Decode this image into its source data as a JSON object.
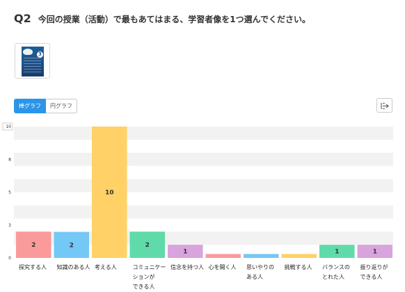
{
  "question": {
    "number": "Q2",
    "text": "今回の授業（活動）で最もあてはまる、学習者像を1つ選んでください。"
  },
  "thumbnail": {
    "badge": "3"
  },
  "view_toggle": {
    "bar_label": "棒グラフ",
    "pie_label": "円グラフ",
    "selected": "bar"
  },
  "export_icon": "export-icon",
  "colors": {
    "active": "#2b95e9",
    "band": "#f2f2f2"
  },
  "chart_data": {
    "type": "bar",
    "categories": [
      [
        "探究する人"
      ],
      [
        "知識のある人"
      ],
      [
        "考える人"
      ],
      [
        "コミュニケー",
        "ションが",
        "できる人"
      ],
      [
        "信念を持つ人"
      ],
      [
        "心を開く人"
      ],
      [
        "思いやりの",
        "ある人"
      ],
      [
        "挑戦する人"
      ],
      [
        "バランスの",
        "とれた人"
      ],
      [
        "振り返りが",
        "できる人"
      ]
    ],
    "values": [
      2,
      1.98,
      10,
      2,
      1,
      0.3,
      0.3,
      0.3,
      1,
      1
    ],
    "value_labels": [
      "2",
      "2",
      "10",
      "2",
      "1",
      "",
      "",
      "",
      "1",
      "1"
    ],
    "colors": [
      "#fb9a9b",
      "#74c8f6",
      "#ffd166",
      "#5fdba9",
      "#d9a3dd",
      "#fb9a9b",
      "#74c8f6",
      "#ffd166",
      "#5fdba9",
      "#d9a3dd"
    ],
    "yticks": [
      "0",
      "3",
      "5",
      "8",
      "10"
    ],
    "ylim": [
      0,
      10
    ],
    "grid": "alternating-bands",
    "title": "",
    "xlabel": "",
    "ylabel": ""
  }
}
